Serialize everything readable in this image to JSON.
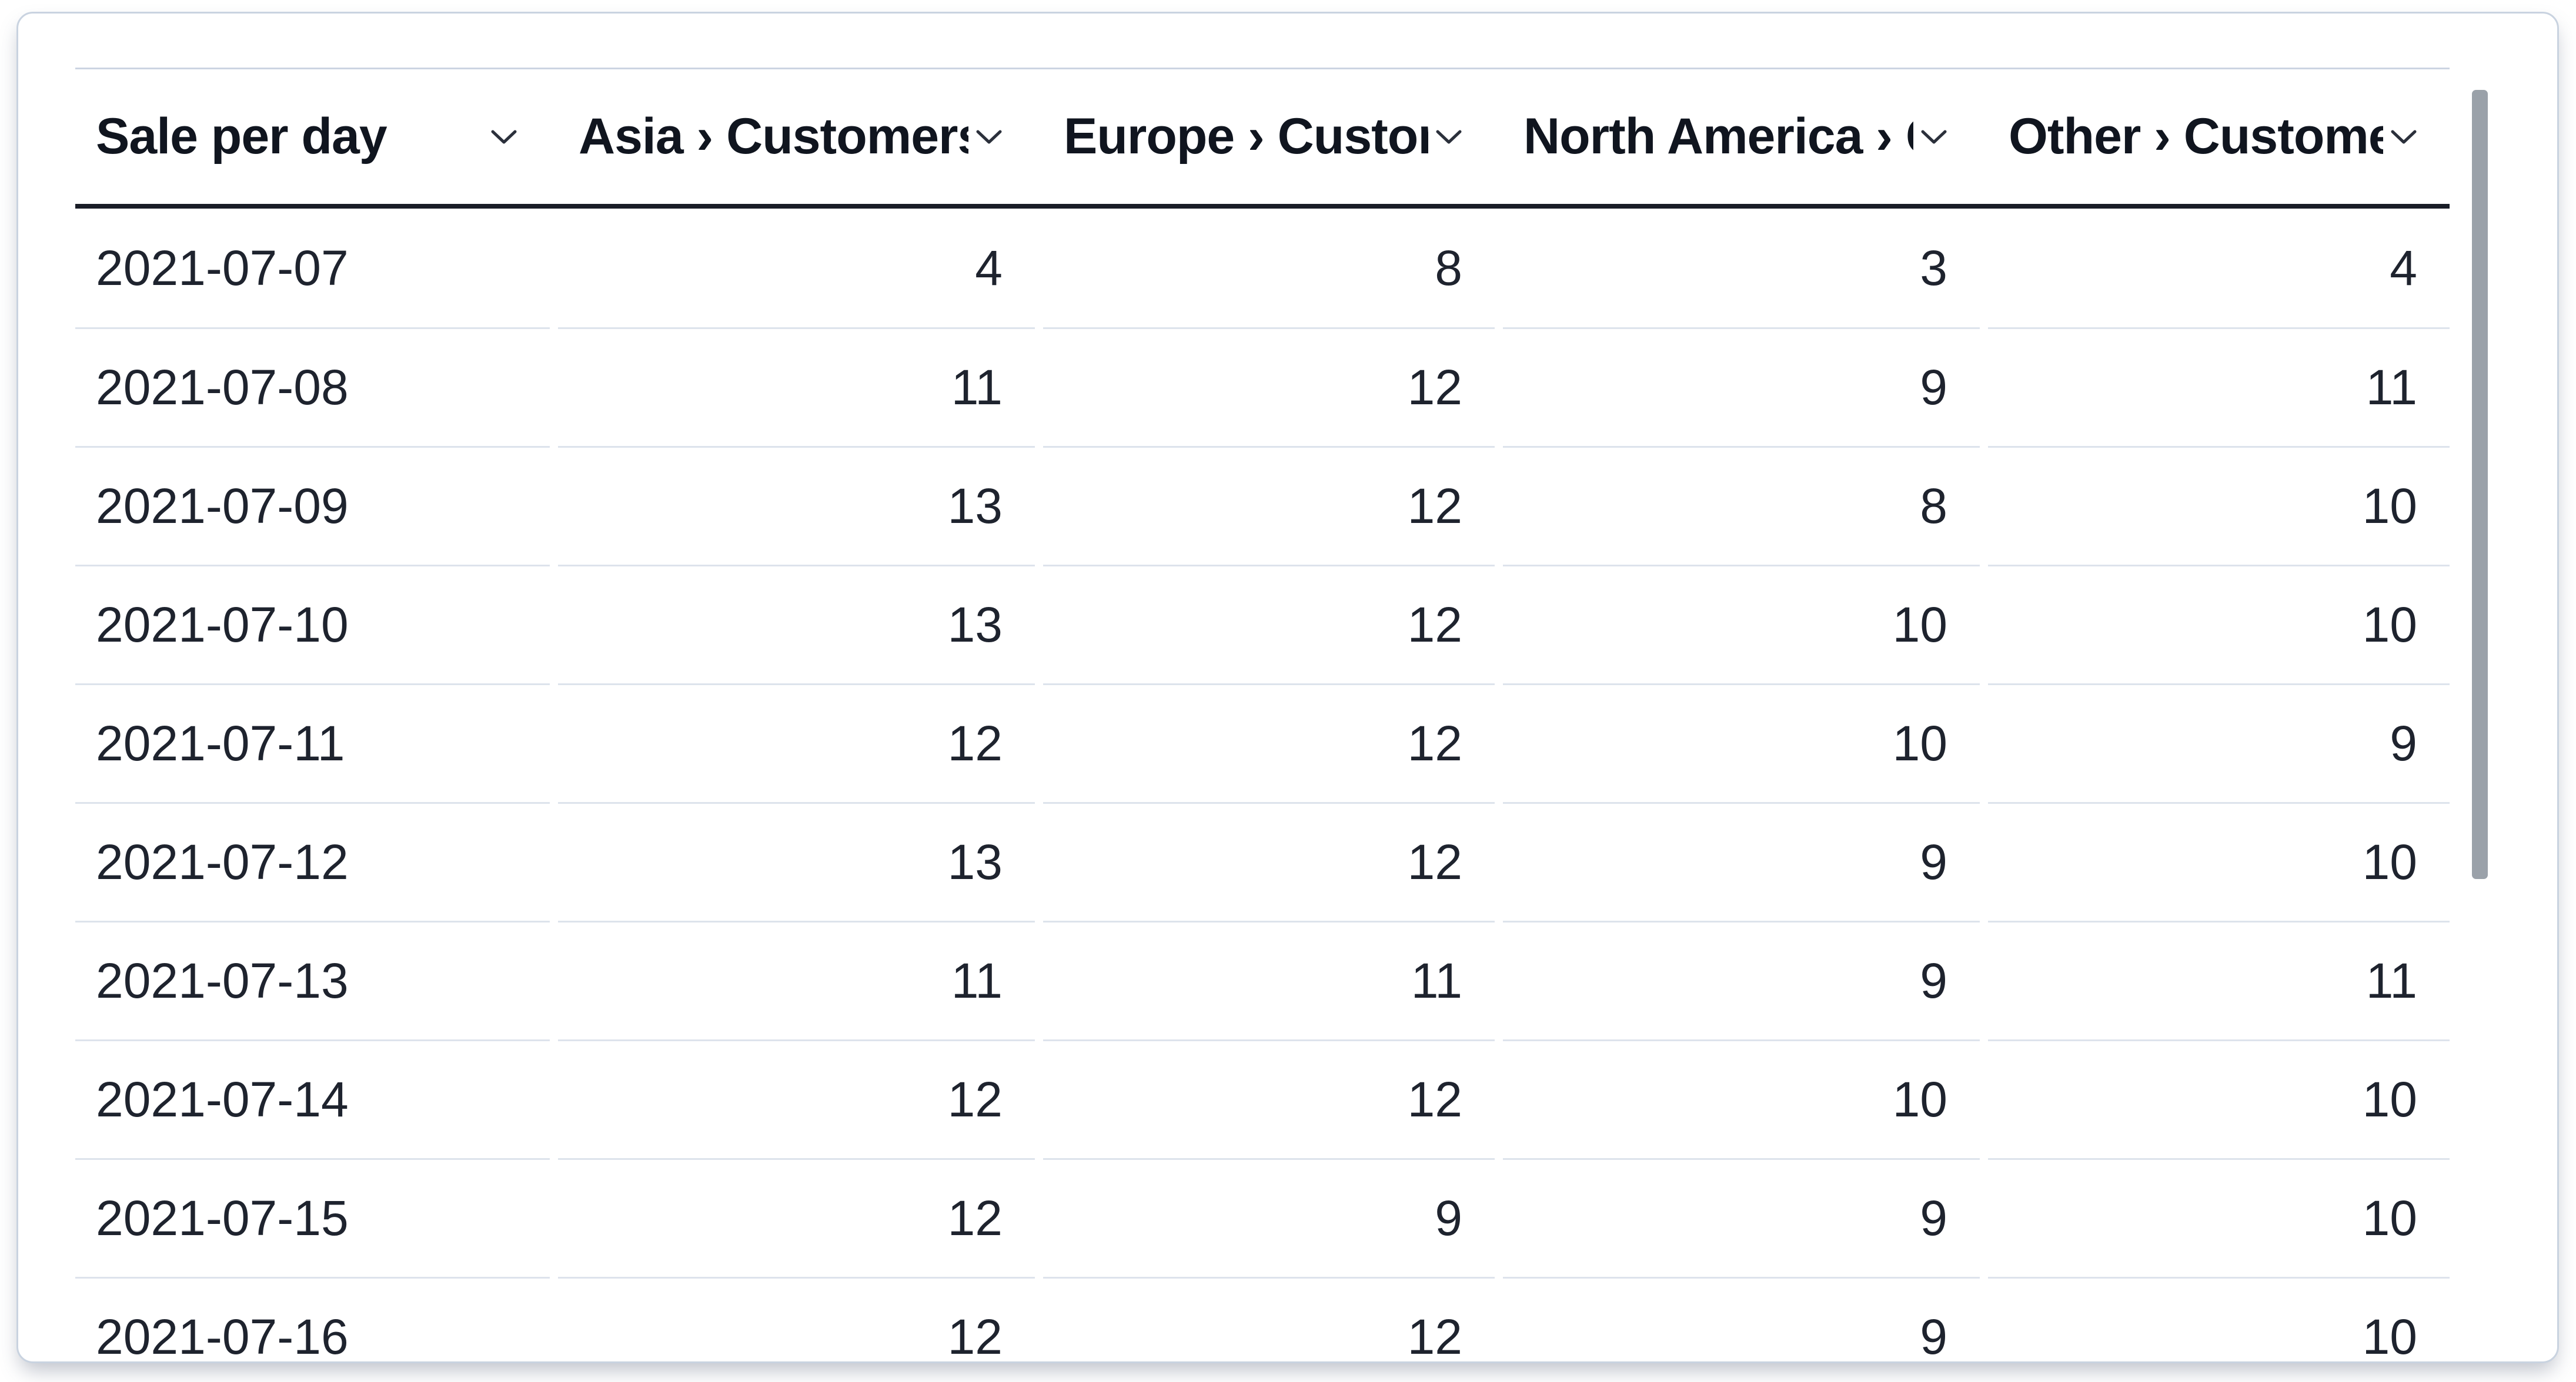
{
  "table": {
    "title": "Sale per day",
    "columns": [
      {
        "label": "Sale per day",
        "align": "left",
        "truncated": false
      },
      {
        "label": "Asia › Customers",
        "align": "right",
        "truncated": true
      },
      {
        "label": "Europe › Customers",
        "align": "right",
        "truncated": true
      },
      {
        "label": "North America › Customers",
        "align": "right",
        "truncated": true
      },
      {
        "label": "Other › Customers",
        "align": "right",
        "truncated": true
      }
    ],
    "rows": [
      [
        "2021-07-07",
        "4",
        "8",
        "3",
        "4"
      ],
      [
        "2021-07-08",
        "11",
        "12",
        "9",
        "11"
      ],
      [
        "2021-07-09",
        "13",
        "12",
        "8",
        "10"
      ],
      [
        "2021-07-10",
        "13",
        "12",
        "10",
        "10"
      ],
      [
        "2021-07-11",
        "12",
        "12",
        "10",
        "9"
      ],
      [
        "2021-07-12",
        "13",
        "12",
        "9",
        "10"
      ],
      [
        "2021-07-13",
        "11",
        "11",
        "9",
        "11"
      ],
      [
        "2021-07-14",
        "12",
        "12",
        "10",
        "10"
      ],
      [
        "2021-07-15",
        "12",
        "9",
        "9",
        "10"
      ],
      [
        "2021-07-16",
        "12",
        "12",
        "9",
        "10"
      ]
    ]
  },
  "icons": {
    "header_sort": "chevron-down-icon"
  },
  "scrollbar": {
    "orientation": "vertical",
    "thumb_color": "#9aa1a9"
  },
  "colors": {
    "card_background": "#ffffff",
    "card_border": "#c9d3e0",
    "header_text": "#10151f",
    "body_text": "#1e232e",
    "header_rule": "#191d27",
    "row_divider": "#dde3ec",
    "top_border": "#ccd4e2"
  }
}
